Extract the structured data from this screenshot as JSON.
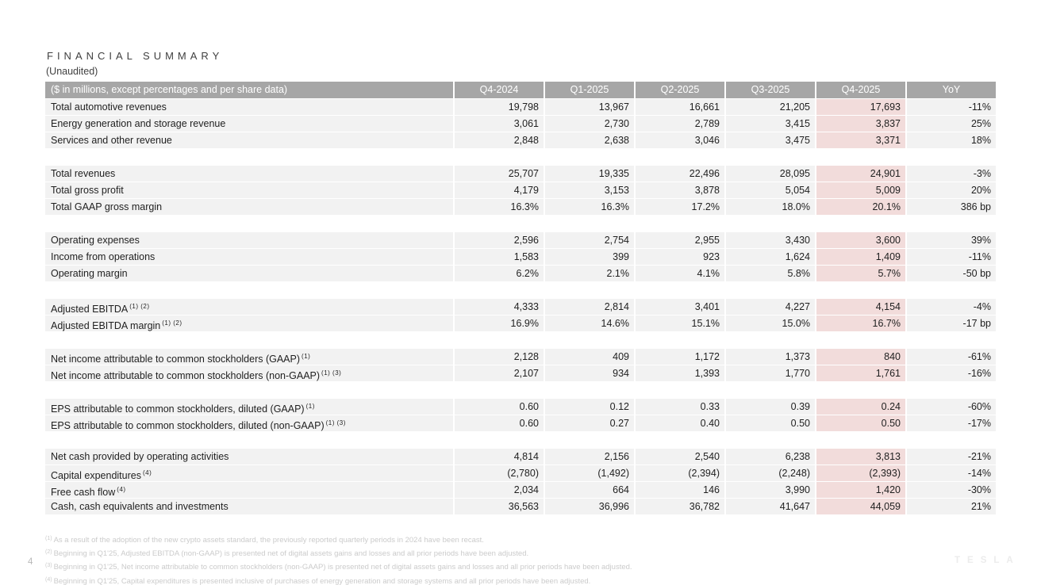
{
  "page": {
    "title": "FINANCIAL SUMMARY",
    "subtitle": "(Unaudited)",
    "page_number": "4",
    "logo_text": "TESLA"
  },
  "colors": {
    "header_bg": "#a6a6a6",
    "header_text": "#ffffff",
    "row_bg": "#f2f2f2",
    "highlight_column_bg": "#f2dcdb",
    "body_text": "#1f1f1f",
    "footnote_text": "#cbcbcb"
  },
  "table": {
    "unit_label": "($ in millions, except percentages and per share data)",
    "columns": [
      "Q4-2024",
      "Q1-2025",
      "Q2-2025",
      "Q3-2025",
      "Q4-2025",
      "YoY"
    ],
    "highlight_column": "Q4-2025",
    "sections": [
      {
        "rows": [
          {
            "label": "Total automotive revenues",
            "sup": "",
            "values": [
              "19,798",
              "13,967",
              "16,661",
              "21,205",
              "17,693",
              "-11%"
            ]
          },
          {
            "label": "Energy generation and storage revenue",
            "sup": "",
            "values": [
              "3,061",
              "2,730",
              "2,789",
              "3,415",
              "3,837",
              "25%"
            ]
          },
          {
            "label": "Services and other revenue",
            "sup": "",
            "values": [
              "2,848",
              "2,638",
              "3,046",
              "3,475",
              "3,371",
              "18%"
            ]
          }
        ]
      },
      {
        "rows": [
          {
            "label": "Total revenues",
            "sup": "",
            "values": [
              "25,707",
              "19,335",
              "22,496",
              "28,095",
              "24,901",
              "-3%"
            ]
          },
          {
            "label": "Total gross profit",
            "sup": "",
            "values": [
              "4,179",
              "3,153",
              "3,878",
              "5,054",
              "5,009",
              "20%"
            ]
          },
          {
            "label": "Total GAAP gross margin",
            "sup": "",
            "values": [
              "16.3%",
              "16.3%",
              "17.2%",
              "18.0%",
              "20.1%",
              "386 bp"
            ]
          }
        ]
      },
      {
        "rows": [
          {
            "label": "Operating expenses",
            "sup": "",
            "values": [
              "2,596",
              "2,754",
              "2,955",
              "3,430",
              "3,600",
              "39%"
            ]
          },
          {
            "label": "Income from operations",
            "sup": "",
            "values": [
              "1,583",
              "399",
              "923",
              "1,624",
              "1,409",
              "-11%"
            ]
          },
          {
            "label": "Operating margin",
            "sup": "",
            "values": [
              "6.2%",
              "2.1%",
              "4.1%",
              "5.8%",
              "5.7%",
              "-50 bp"
            ]
          }
        ]
      },
      {
        "rows": [
          {
            "label": "Adjusted EBITDA",
            "sup": "(1) (2)",
            "values": [
              "4,333",
              "2,814",
              "3,401",
              "4,227",
              "4,154",
              "-4%"
            ]
          },
          {
            "label": "Adjusted EBITDA margin",
            "sup": "(1) (2)",
            "values": [
              "16.9%",
              "14.6%",
              "15.1%",
              "15.0%",
              "16.7%",
              "-17 bp"
            ]
          }
        ]
      },
      {
        "rows": [
          {
            "label": "Net income attributable to common stockholders (GAAP)",
            "sup": "(1)",
            "values": [
              "2,128",
              "409",
              "1,172",
              "1,373",
              "840",
              "-61%"
            ]
          },
          {
            "label": "Net income attributable to common stockholders (non-GAAP)",
            "sup": "(1) (3)",
            "values": [
              "2,107",
              "934",
              "1,393",
              "1,770",
              "1,761",
              "-16%"
            ]
          }
        ]
      },
      {
        "rows": [
          {
            "label": "EPS attributable to common stockholders, diluted (GAAP)",
            "sup": "(1)",
            "values": [
              "0.60",
              "0.12",
              "0.33",
              "0.39",
              "0.24",
              "-60%"
            ]
          },
          {
            "label": "EPS attributable to common stockholders, diluted (non-GAAP)",
            "sup": "(1) (3)",
            "values": [
              "0.60",
              "0.27",
              "0.40",
              "0.50",
              "0.50",
              "-17%"
            ]
          }
        ]
      },
      {
        "rows": [
          {
            "label": "Net cash provided by operating activities",
            "sup": "",
            "values": [
              "4,814",
              "2,156",
              "2,540",
              "6,238",
              "3,813",
              "-21%"
            ]
          },
          {
            "label": "Capital expenditures",
            "sup": "(4)",
            "values": [
              "(2,780)",
              "(1,492)",
              "(2,394)",
              "(2,248)",
              "(2,393)",
              "-14%"
            ]
          },
          {
            "label": "Free cash flow",
            "sup": "(4)",
            "values": [
              "2,034",
              "664",
              "146",
              "3,990",
              "1,420",
              "-30%"
            ]
          },
          {
            "label": "Cash, cash equivalents and investments",
            "sup": "",
            "values": [
              "36,563",
              "36,996",
              "36,782",
              "41,647",
              "44,059",
              "21%"
            ]
          }
        ]
      }
    ]
  },
  "footnotes": [
    {
      "marker": "(1)",
      "text": "As a result of the adoption of the new crypto assets standard, the previously reported quarterly periods in 2024 have been recast."
    },
    {
      "marker": "(2)",
      "text": "Beginning in Q1'25, Adjusted EBITDA (non-GAAP) is presented net of digital assets gains and losses and all prior periods have been adjusted."
    },
    {
      "marker": "(3)",
      "text": "Beginning in Q1'25, Net income attributable to common stockholders (non-GAAP) is presented net of digital assets gains and losses and all prior periods have been adjusted."
    },
    {
      "marker": "(4)",
      "text": "Beginning in Q1'25, Capital expenditures is presented inclusive of purchases of energy generation and storage systems and all prior periods have been adjusted."
    }
  ]
}
